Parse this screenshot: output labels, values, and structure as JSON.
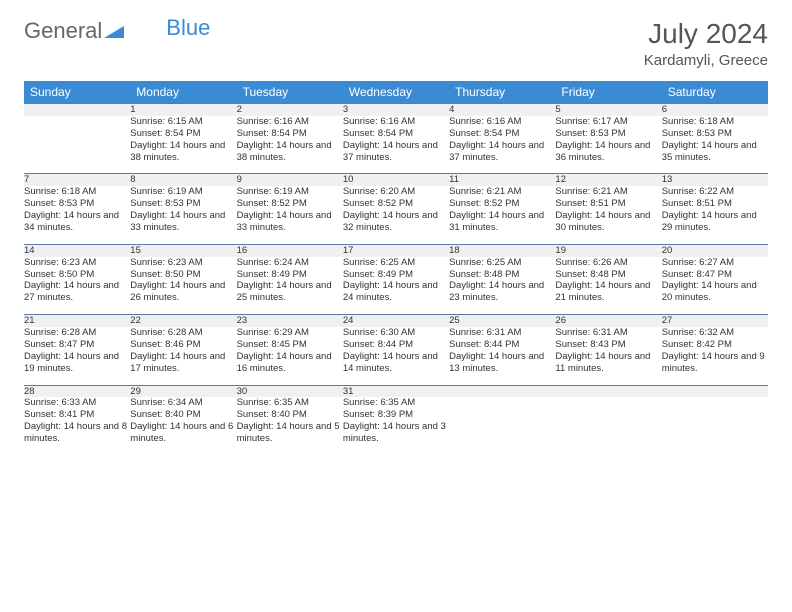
{
  "brand": {
    "part1": "General",
    "part2": "Blue"
  },
  "title": "July 2024",
  "location": "Kardamyli, Greece",
  "colors": {
    "header_bg": "#3b8bd4",
    "header_text": "#ffffff",
    "daynum_bg": "#eef0f2",
    "row_border": "#5c7ba3",
    "text": "#333333",
    "title_text": "#555555"
  },
  "weekdays": [
    "Sunday",
    "Monday",
    "Tuesday",
    "Wednesday",
    "Thursday",
    "Friday",
    "Saturday"
  ],
  "weeks": [
    {
      "nums": [
        "",
        "1",
        "2",
        "3",
        "4",
        "5",
        "6"
      ],
      "cells": [
        null,
        {
          "sunrise": "Sunrise: 6:15 AM",
          "sunset": "Sunset: 8:54 PM",
          "daylight": "Daylight: 14 hours and 38 minutes."
        },
        {
          "sunrise": "Sunrise: 6:16 AM",
          "sunset": "Sunset: 8:54 PM",
          "daylight": "Daylight: 14 hours and 38 minutes."
        },
        {
          "sunrise": "Sunrise: 6:16 AM",
          "sunset": "Sunset: 8:54 PM",
          "daylight": "Daylight: 14 hours and 37 minutes."
        },
        {
          "sunrise": "Sunrise: 6:16 AM",
          "sunset": "Sunset: 8:54 PM",
          "daylight": "Daylight: 14 hours and 37 minutes."
        },
        {
          "sunrise": "Sunrise: 6:17 AM",
          "sunset": "Sunset: 8:53 PM",
          "daylight": "Daylight: 14 hours and 36 minutes."
        },
        {
          "sunrise": "Sunrise: 6:18 AM",
          "sunset": "Sunset: 8:53 PM",
          "daylight": "Daylight: 14 hours and 35 minutes."
        }
      ]
    },
    {
      "nums": [
        "7",
        "8",
        "9",
        "10",
        "11",
        "12",
        "13"
      ],
      "cells": [
        {
          "sunrise": "Sunrise: 6:18 AM",
          "sunset": "Sunset: 8:53 PM",
          "daylight": "Daylight: 14 hours and 34 minutes."
        },
        {
          "sunrise": "Sunrise: 6:19 AM",
          "sunset": "Sunset: 8:53 PM",
          "daylight": "Daylight: 14 hours and 33 minutes."
        },
        {
          "sunrise": "Sunrise: 6:19 AM",
          "sunset": "Sunset: 8:52 PM",
          "daylight": "Daylight: 14 hours and 33 minutes."
        },
        {
          "sunrise": "Sunrise: 6:20 AM",
          "sunset": "Sunset: 8:52 PM",
          "daylight": "Daylight: 14 hours and 32 minutes."
        },
        {
          "sunrise": "Sunrise: 6:21 AM",
          "sunset": "Sunset: 8:52 PM",
          "daylight": "Daylight: 14 hours and 31 minutes."
        },
        {
          "sunrise": "Sunrise: 6:21 AM",
          "sunset": "Sunset: 8:51 PM",
          "daylight": "Daylight: 14 hours and 30 minutes."
        },
        {
          "sunrise": "Sunrise: 6:22 AM",
          "sunset": "Sunset: 8:51 PM",
          "daylight": "Daylight: 14 hours and 29 minutes."
        }
      ]
    },
    {
      "nums": [
        "14",
        "15",
        "16",
        "17",
        "18",
        "19",
        "20"
      ],
      "cells": [
        {
          "sunrise": "Sunrise: 6:23 AM",
          "sunset": "Sunset: 8:50 PM",
          "daylight": "Daylight: 14 hours and 27 minutes."
        },
        {
          "sunrise": "Sunrise: 6:23 AM",
          "sunset": "Sunset: 8:50 PM",
          "daylight": "Daylight: 14 hours and 26 minutes."
        },
        {
          "sunrise": "Sunrise: 6:24 AM",
          "sunset": "Sunset: 8:49 PM",
          "daylight": "Daylight: 14 hours and 25 minutes."
        },
        {
          "sunrise": "Sunrise: 6:25 AM",
          "sunset": "Sunset: 8:49 PM",
          "daylight": "Daylight: 14 hours and 24 minutes."
        },
        {
          "sunrise": "Sunrise: 6:25 AM",
          "sunset": "Sunset: 8:48 PM",
          "daylight": "Daylight: 14 hours and 23 minutes."
        },
        {
          "sunrise": "Sunrise: 6:26 AM",
          "sunset": "Sunset: 8:48 PM",
          "daylight": "Daylight: 14 hours and 21 minutes."
        },
        {
          "sunrise": "Sunrise: 6:27 AM",
          "sunset": "Sunset: 8:47 PM",
          "daylight": "Daylight: 14 hours and 20 minutes."
        }
      ]
    },
    {
      "nums": [
        "21",
        "22",
        "23",
        "24",
        "25",
        "26",
        "27"
      ],
      "cells": [
        {
          "sunrise": "Sunrise: 6:28 AM",
          "sunset": "Sunset: 8:47 PM",
          "daylight": "Daylight: 14 hours and 19 minutes."
        },
        {
          "sunrise": "Sunrise: 6:28 AM",
          "sunset": "Sunset: 8:46 PM",
          "daylight": "Daylight: 14 hours and 17 minutes."
        },
        {
          "sunrise": "Sunrise: 6:29 AM",
          "sunset": "Sunset: 8:45 PM",
          "daylight": "Daylight: 14 hours and 16 minutes."
        },
        {
          "sunrise": "Sunrise: 6:30 AM",
          "sunset": "Sunset: 8:44 PM",
          "daylight": "Daylight: 14 hours and 14 minutes."
        },
        {
          "sunrise": "Sunrise: 6:31 AM",
          "sunset": "Sunset: 8:44 PM",
          "daylight": "Daylight: 14 hours and 13 minutes."
        },
        {
          "sunrise": "Sunrise: 6:31 AM",
          "sunset": "Sunset: 8:43 PM",
          "daylight": "Daylight: 14 hours and 11 minutes."
        },
        {
          "sunrise": "Sunrise: 6:32 AM",
          "sunset": "Sunset: 8:42 PM",
          "daylight": "Daylight: 14 hours and 9 minutes."
        }
      ]
    },
    {
      "nums": [
        "28",
        "29",
        "30",
        "31",
        "",
        "",
        ""
      ],
      "cells": [
        {
          "sunrise": "Sunrise: 6:33 AM",
          "sunset": "Sunset: 8:41 PM",
          "daylight": "Daylight: 14 hours and 8 minutes."
        },
        {
          "sunrise": "Sunrise: 6:34 AM",
          "sunset": "Sunset: 8:40 PM",
          "daylight": "Daylight: 14 hours and 6 minutes."
        },
        {
          "sunrise": "Sunrise: 6:35 AM",
          "sunset": "Sunset: 8:40 PM",
          "daylight": "Daylight: 14 hours and 5 minutes."
        },
        {
          "sunrise": "Sunrise: 6:35 AM",
          "sunset": "Sunset: 8:39 PM",
          "daylight": "Daylight: 14 hours and 3 minutes."
        },
        null,
        null,
        null
      ]
    }
  ]
}
